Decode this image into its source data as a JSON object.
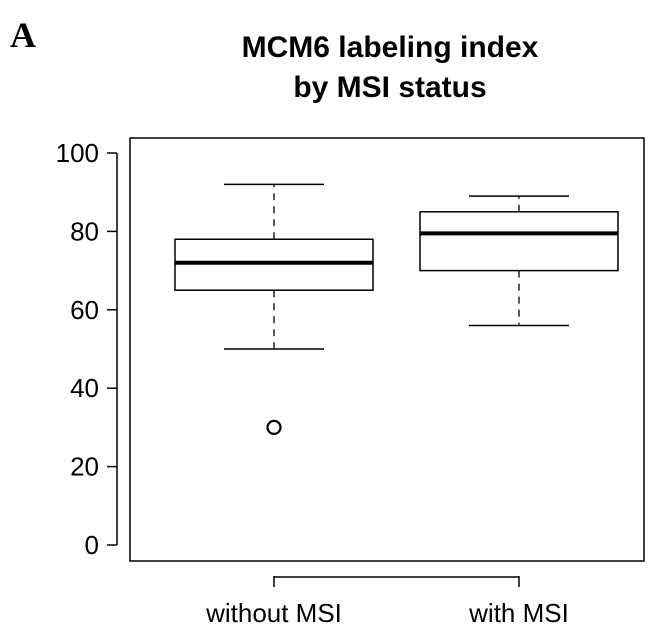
{
  "panel_label": "A",
  "chart_data": {
    "type": "box",
    "title_lines": [
      "MCM6 labeling index",
      "by MSI status"
    ],
    "xlabel": "",
    "ylabel": "",
    "ylim": [
      -4,
      106
    ],
    "yticks": [
      0,
      20,
      40,
      60,
      80,
      100
    ],
    "grid": false,
    "categories": [
      "without MSI",
      "with MSI"
    ],
    "boxes": [
      {
        "category": "without MSI",
        "whisker_low": 50,
        "q1": 65,
        "median": 72,
        "q3": 78,
        "whisker_high": 92,
        "outliers": [
          30
        ]
      },
      {
        "category": "with MSI",
        "whisker_low": 56,
        "q1": 70,
        "median": 79.5,
        "q3": 85,
        "whisker_high": 89,
        "outliers": []
      }
    ]
  }
}
